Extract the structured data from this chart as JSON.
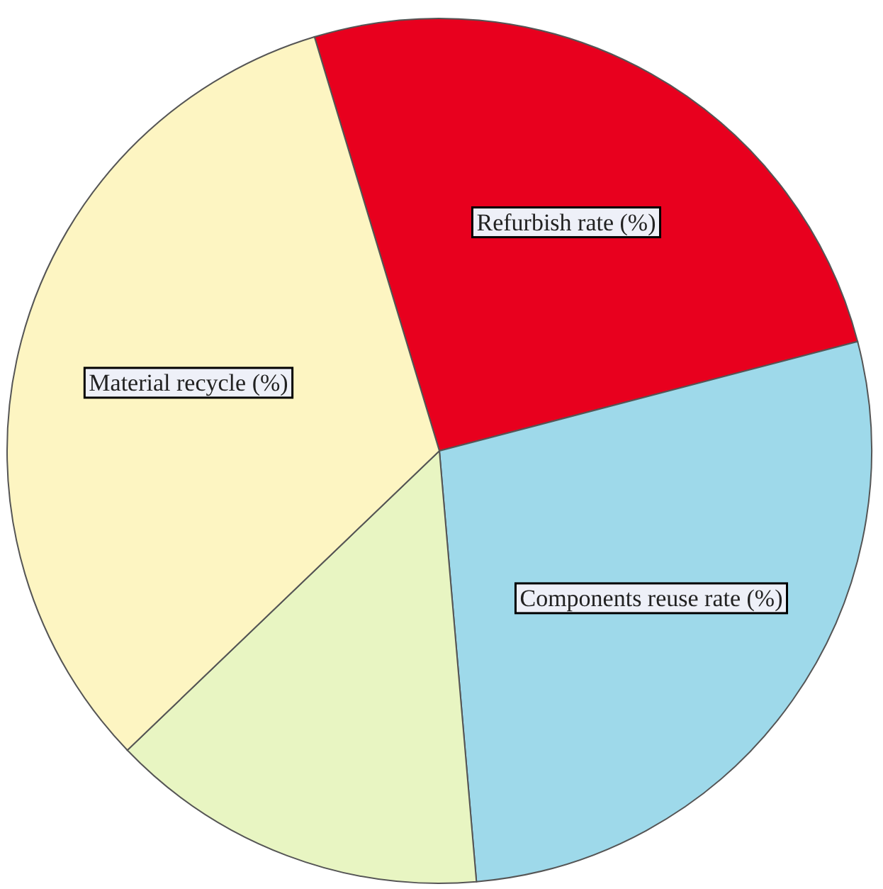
{
  "chart_data": {
    "type": "pie",
    "categories": [
      "Refurbish rate (%)",
      "Components reuse rate (%)",
      null,
      "Material recycle (%)"
    ],
    "values": [
      25.6,
      27.7,
      14.2,
      32.5
    ],
    "colors": [
      "#e8001e",
      "#9ed9ea",
      "#e8f5c2",
      "#fdf5c2"
    ]
  }
}
